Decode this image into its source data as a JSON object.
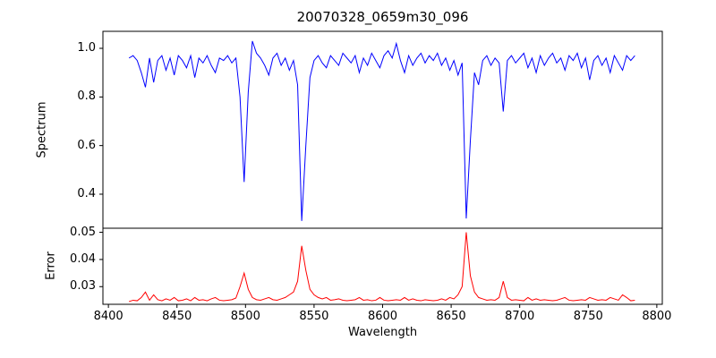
{
  "figure": {
    "background": "#ffffff",
    "spine_color": "#000000"
  },
  "chart_data": {
    "type": "line",
    "title": "20070328_0659m30_096",
    "xlabel": "Wavelength",
    "grid": false,
    "legend": "none",
    "xlim": [
      8396,
      8804
    ],
    "xticks": [
      8400,
      8450,
      8500,
      8550,
      8600,
      8650,
      8700,
      8750,
      8800
    ],
    "x": [
      8415,
      8418,
      8421,
      8424,
      8427,
      8430,
      8433,
      8436,
      8439,
      8442,
      8445,
      8448,
      8451,
      8454,
      8457,
      8460,
      8463,
      8466,
      8469,
      8472,
      8475,
      8478,
      8481,
      8484,
      8487,
      8490,
      8493,
      8496,
      8499,
      8502,
      8505,
      8508,
      8511,
      8514,
      8517,
      8520,
      8523,
      8526,
      8529,
      8532,
      8535,
      8538,
      8541,
      8544,
      8547,
      8550,
      8553,
      8556,
      8559,
      8562,
      8565,
      8568,
      8571,
      8574,
      8577,
      8580,
      8583,
      8586,
      8589,
      8592,
      8595,
      8598,
      8601,
      8604,
      8607,
      8610,
      8613,
      8616,
      8619,
      8622,
      8625,
      8628,
      8631,
      8634,
      8637,
      8640,
      8643,
      8646,
      8649,
      8652,
      8655,
      8658,
      8661,
      8664,
      8667,
      8670,
      8673,
      8676,
      8679,
      8682,
      8685,
      8688,
      8691,
      8694,
      8697,
      8700,
      8703,
      8706,
      8709,
      8712,
      8715,
      8718,
      8721,
      8724,
      8727,
      8730,
      8733,
      8736,
      8739,
      8742,
      8745,
      8748,
      8751,
      8754,
      8757,
      8760,
      8763,
      8766,
      8769,
      8772,
      8775,
      8778,
      8781,
      8784
    ],
    "series": [
      {
        "name": "Spectrum",
        "ylabel": "Spectrum",
        "color": "#0000ff",
        "panel": "top",
        "ylim": [
          0.26,
          1.07
        ],
        "yticks": [
          0.4,
          0.6,
          0.8,
          1.0
        ],
        "values": [
          0.96,
          0.97,
          0.95,
          0.9,
          0.84,
          0.96,
          0.86,
          0.95,
          0.97,
          0.91,
          0.96,
          0.89,
          0.97,
          0.95,
          0.92,
          0.97,
          0.88,
          0.96,
          0.94,
          0.97,
          0.93,
          0.9,
          0.96,
          0.95,
          0.97,
          0.94,
          0.96,
          0.8,
          0.45,
          0.82,
          1.03,
          0.98,
          0.96,
          0.93,
          0.89,
          0.96,
          0.98,
          0.93,
          0.96,
          0.91,
          0.95,
          0.85,
          0.29,
          0.6,
          0.88,
          0.95,
          0.97,
          0.94,
          0.92,
          0.97,
          0.95,
          0.93,
          0.98,
          0.96,
          0.94,
          0.97,
          0.9,
          0.96,
          0.93,
          0.98,
          0.95,
          0.92,
          0.97,
          0.99,
          0.96,
          1.02,
          0.95,
          0.9,
          0.97,
          0.93,
          0.96,
          0.98,
          0.94,
          0.97,
          0.95,
          0.98,
          0.93,
          0.96,
          0.91,
          0.95,
          0.89,
          0.94,
          0.3,
          0.62,
          0.9,
          0.85,
          0.95,
          0.97,
          0.93,
          0.96,
          0.94,
          0.74,
          0.95,
          0.97,
          0.94,
          0.96,
          0.98,
          0.92,
          0.96,
          0.9,
          0.97,
          0.93,
          0.96,
          0.98,
          0.94,
          0.96,
          0.91,
          0.97,
          0.95,
          0.98,
          0.92,
          0.96,
          0.87,
          0.95,
          0.97,
          0.93,
          0.96,
          0.9,
          0.97,
          0.94,
          0.91,
          0.97,
          0.95,
          0.97
        ]
      },
      {
        "name": "Error",
        "ylabel": "Error",
        "color": "#ff0000",
        "panel": "bottom",
        "ylim": [
          0.0235,
          0.0515
        ],
        "yticks": [
          0.03,
          0.04,
          0.05
        ],
        "values": [
          0.0245,
          0.025,
          0.0248,
          0.026,
          0.028,
          0.025,
          0.027,
          0.0252,
          0.0248,
          0.0255,
          0.025,
          0.026,
          0.0248,
          0.025,
          0.0255,
          0.0248,
          0.026,
          0.025,
          0.0252,
          0.0248,
          0.0255,
          0.026,
          0.025,
          0.0248,
          0.025,
          0.0252,
          0.0258,
          0.03,
          0.035,
          0.029,
          0.026,
          0.0252,
          0.025,
          0.0255,
          0.026,
          0.0252,
          0.025,
          0.0255,
          0.026,
          0.027,
          0.028,
          0.032,
          0.045,
          0.036,
          0.029,
          0.027,
          0.026,
          0.0255,
          0.026,
          0.025,
          0.0252,
          0.0255,
          0.025,
          0.0248,
          0.025,
          0.0252,
          0.026,
          0.025,
          0.0252,
          0.0248,
          0.025,
          0.026,
          0.025,
          0.0248,
          0.025,
          0.0252,
          0.025,
          0.026,
          0.025,
          0.0255,
          0.025,
          0.0248,
          0.0252,
          0.025,
          0.0248,
          0.025,
          0.0255,
          0.025,
          0.026,
          0.0255,
          0.027,
          0.03,
          0.05,
          0.034,
          0.028,
          0.026,
          0.0255,
          0.025,
          0.0252,
          0.025,
          0.026,
          0.032,
          0.026,
          0.025,
          0.0252,
          0.025,
          0.0248,
          0.026,
          0.025,
          0.0255,
          0.025,
          0.0252,
          0.025,
          0.0248,
          0.025,
          0.0255,
          0.026,
          0.025,
          0.0248,
          0.025,
          0.0252,
          0.025,
          0.026,
          0.0255,
          0.025,
          0.0252,
          0.025,
          0.026,
          0.0255,
          0.025,
          0.027,
          0.026,
          0.0248,
          0.025
        ]
      }
    ]
  }
}
